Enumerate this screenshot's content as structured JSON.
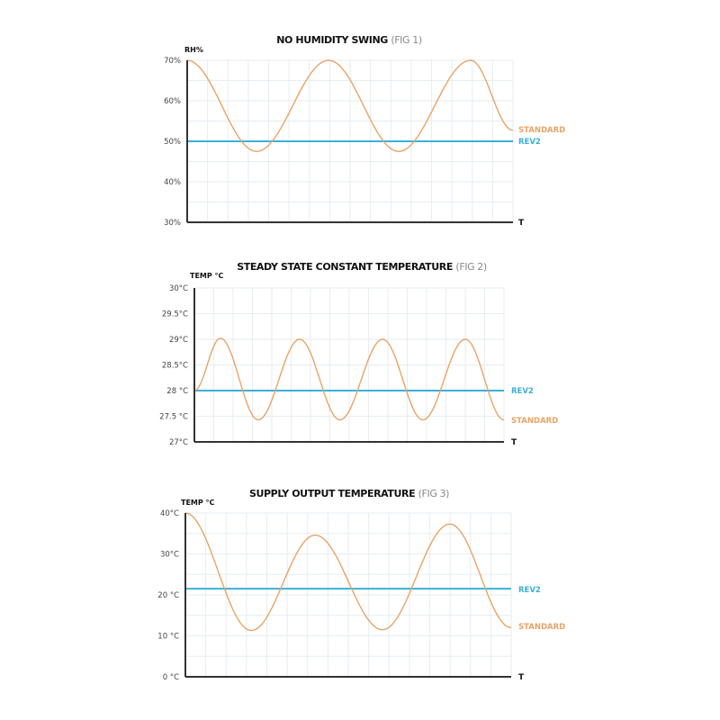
{
  "colors": {
    "standard": "#e8a467",
    "rev2": "#3bb0d8",
    "axis": "#333333",
    "grid": "#e6edf2"
  },
  "chart_data": [
    {
      "type": "line",
      "title": "NO HUMIDITY SWING",
      "title_suffix": "(FIG 1)",
      "ylabel": "RH%",
      "xlabel": "T",
      "ylim": [
        30,
        70
      ],
      "xlim": [
        0,
        100
      ],
      "yticks": [
        30,
        40,
        50,
        60,
        70
      ],
      "ytick_labels": [
        "30%",
        "40%",
        "50%",
        "60%",
        "70%"
      ],
      "grid": true,
      "series": [
        {
          "name": "STANDARD",
          "x": [
            0,
            21.3,
            43.4,
            64.9,
            87.0,
            100
          ],
          "y": [
            70,
            47.5,
            70,
            47.5,
            70,
            52.7
          ]
        },
        {
          "name": "REV2",
          "x": [
            0,
            100
          ],
          "y": [
            50,
            50
          ]
        }
      ]
    },
    {
      "type": "line",
      "title": "STEADY STATE CONSTANT TEMPERATURE",
      "title_suffix": "(FIG 2)",
      "ylabel": "TEMP °C",
      "xlabel": "T",
      "ylim": [
        27,
        30
      ],
      "xlim": [
        0,
        100
      ],
      "yticks": [
        27,
        27.5,
        28,
        28.5,
        29,
        29.5,
        30
      ],
      "ytick_labels": [
        "27°C",
        "27.5 °C",
        "28 °C",
        "28.5°C",
        "29°C",
        "29.5°C",
        "30°C"
      ],
      "grid": true,
      "series": [
        {
          "name": "STANDARD",
          "x": [
            0,
            8.4,
            20.6,
            34.0,
            47.0,
            60.8,
            73.8,
            87.5,
            100
          ],
          "y": [
            28,
            29.02,
            27.43,
            29.0,
            27.43,
            29.0,
            27.43,
            29.0,
            27.43
          ]
        },
        {
          "name": "REV2",
          "x": [
            0,
            100
          ],
          "y": [
            28,
            28
          ]
        }
      ]
    },
    {
      "type": "line",
      "title": "SUPPLY OUTPUT TEMPERATURE",
      "title_suffix": "(FIG 3)",
      "ylabel": "TEMP °C",
      "xlabel": "T",
      "ylim": [
        0,
        40
      ],
      "xlim": [
        0,
        100
      ],
      "yticks": [
        0,
        10,
        20,
        30,
        40
      ],
      "ytick_labels": [
        "0 °C",
        "10 °C",
        "20 °C",
        "30°C",
        "40°C"
      ],
      "grid": true,
      "series": [
        {
          "name": "STANDARD",
          "x": [
            0,
            20.2,
            39.8,
            60.5,
            81.2,
            100
          ],
          "y": [
            40,
            11.3,
            34.6,
            11.5,
            37.3,
            12
          ]
        },
        {
          "name": "REV2",
          "x": [
            0,
            100
          ],
          "y": [
            21.5,
            21.5
          ]
        }
      ]
    }
  ]
}
